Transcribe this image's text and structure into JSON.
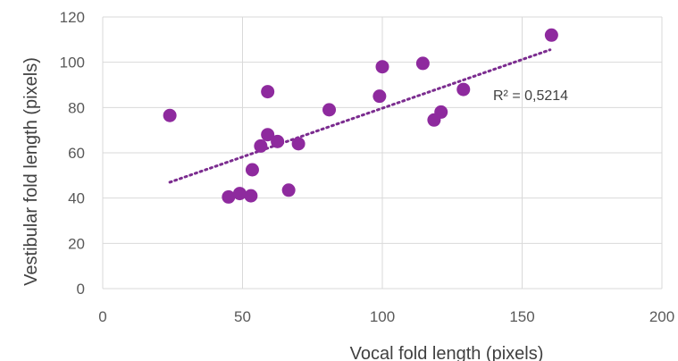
{
  "chart_data": {
    "type": "scatter",
    "xlabel": "Vocal fold length (pixels)",
    "ylabel": "Vestibular fold length (pixels)",
    "xlim": [
      0,
      200
    ],
    "ylim": [
      0,
      120
    ],
    "x_ticks": [
      0,
      50,
      100,
      150,
      200
    ],
    "y_ticks": [
      0,
      20,
      40,
      60,
      80,
      100,
      120
    ],
    "x_tick_labels": [
      "0",
      "50",
      "100",
      "150",
      "200"
    ],
    "y_tick_labels": [
      "0",
      "20",
      "40",
      "60",
      "80",
      "100",
      "120"
    ],
    "grid": true,
    "marker_color": "#8E2A9E",
    "trendline_color": "#7B2C8F",
    "points": [
      {
        "x": 24,
        "y": 76.5
      },
      {
        "x": 45,
        "y": 40.5
      },
      {
        "x": 49,
        "y": 42
      },
      {
        "x": 53,
        "y": 41
      },
      {
        "x": 53.5,
        "y": 52.5
      },
      {
        "x": 56.5,
        "y": 63
      },
      {
        "x": 59,
        "y": 68
      },
      {
        "x": 59,
        "y": 87
      },
      {
        "x": 62.5,
        "y": 65
      },
      {
        "x": 66.5,
        "y": 43.5
      },
      {
        "x": 70,
        "y": 64
      },
      {
        "x": 81,
        "y": 79
      },
      {
        "x": 99,
        "y": 85
      },
      {
        "x": 100,
        "y": 98
      },
      {
        "x": 114.5,
        "y": 99.5
      },
      {
        "x": 118.5,
        "y": 74.5
      },
      {
        "x": 121,
        "y": 78
      },
      {
        "x": 129,
        "y": 88
      },
      {
        "x": 160.5,
        "y": 112
      }
    ],
    "trendline": {
      "type": "linear",
      "x": [
        24,
        160
      ],
      "y": [
        47,
        105.5
      ],
      "label": "R² = 0,5214"
    }
  }
}
